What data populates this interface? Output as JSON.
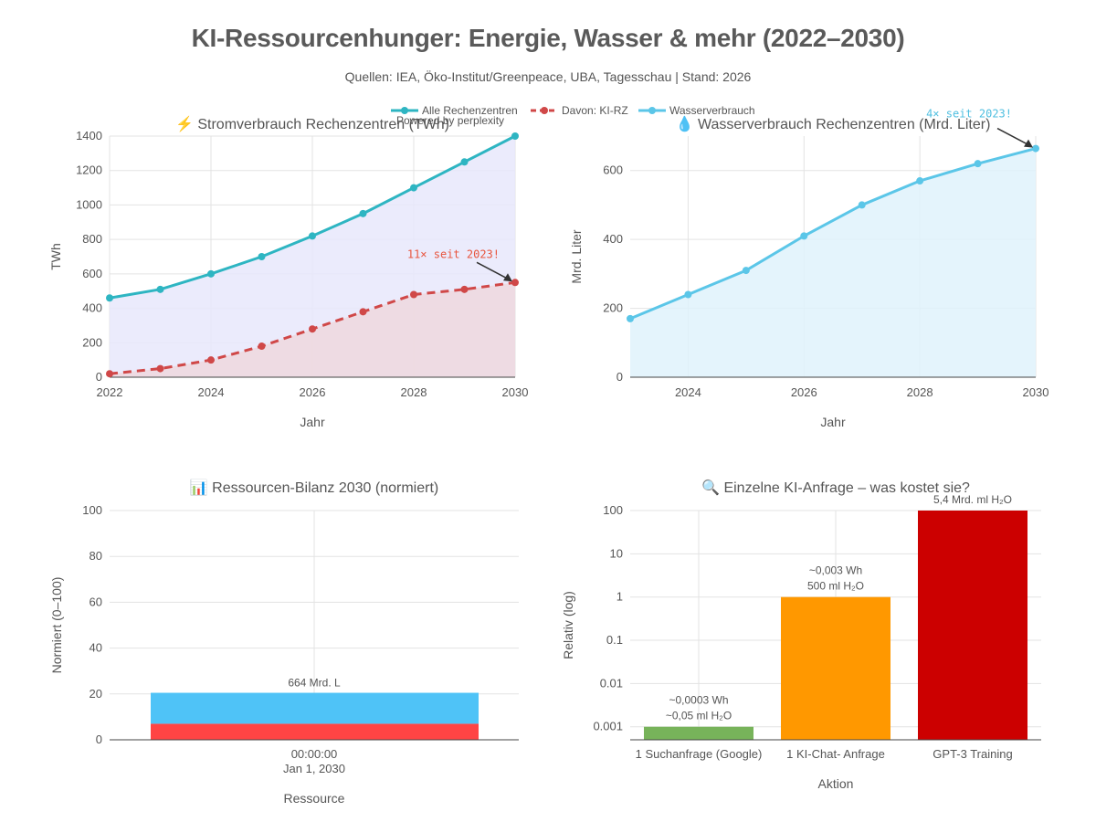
{
  "title": "KI-Ressourcenhunger: Energie, Wasser & mehr (2022–2030)",
  "subtitle": "Quellen: IEA, Öko-Institut/Greenpeace, UBA, Tagesschau | Stand: 2026",
  "brand": "Powered by  perplexity",
  "legend": [
    {
      "name": "Alle Rechenzentren",
      "color": "#2eb5c2",
      "dash": false
    },
    {
      "name": "Davon: KI-RZ",
      "color": "#d04848",
      "dash": true
    },
    {
      "name": "Wasserverbrauch",
      "color": "#5bc6e8",
      "dash": false
    }
  ],
  "chart_data": [
    {
      "type": "line",
      "title": "⚡ Stromverbrauch Rechenzentren (TWh)",
      "xlabel": "Jahr",
      "ylabel": "TWh",
      "x": [
        2022,
        2023,
        2024,
        2025,
        2026,
        2027,
        2028,
        2029,
        2030
      ],
      "xlim": [
        2022,
        2030
      ],
      "xticks": [
        2022,
        2024,
        2026,
        2028,
        2030
      ],
      "ylim": [
        0,
        1400
      ],
      "yticks": [
        0,
        200,
        400,
        600,
        800,
        1000,
        1200,
        1400
      ],
      "series": [
        {
          "name": "Alle Rechenzentren",
          "values": [
            460,
            510,
            600,
            700,
            820,
            950,
            1100,
            1250,
            1400
          ],
          "color": "#2eb5c2",
          "fill": "#e8e8fb",
          "dash": false
        },
        {
          "name": "Davon: KI-RZ",
          "values": [
            20,
            50,
            100,
            180,
            280,
            380,
            480,
            510,
            550
          ],
          "color": "#d04848",
          "fill": "#efd8de",
          "dash": true
        }
      ],
      "annotation": {
        "text": "11× seit 2023!",
        "x": 2030,
        "y": 550,
        "color": "#e8553e"
      }
    },
    {
      "type": "area",
      "title": "💧 Wasserverbrauch Rechenzentren (Mrd. Liter)",
      "xlabel": "Jahr",
      "ylabel": "Mrd. Liter",
      "x": [
        2023,
        2024,
        2025,
        2026,
        2027,
        2028,
        2029,
        2030
      ],
      "xlim": [
        2023,
        2030
      ],
      "xticks": [
        2024,
        2026,
        2028,
        2030
      ],
      "ylim": [
        0,
        700
      ],
      "yticks": [
        0,
        200,
        400,
        600
      ],
      "series": [
        {
          "name": "Wasserverbrauch",
          "values": [
            170,
            240,
            310,
            410,
            500,
            570,
            620,
            664
          ],
          "color": "#5bc6e8",
          "fill": "#dff2fb",
          "dash": false
        }
      ],
      "annotation": {
        "text": "4× seit 2023!",
        "x": 2030,
        "y": 664,
        "color": "#4fbfe0"
      }
    },
    {
      "type": "bar",
      "title": "📊 Ressourcen-Bilanz 2030 (normiert)",
      "xlabel": "Ressource",
      "ylabel": "Normiert (0–100)",
      "categories": [
        "00:00:00",
        "Jan 1, 2030"
      ],
      "ylim": [
        0,
        100
      ],
      "yticks": [
        0,
        20,
        40,
        60,
        80,
        100
      ],
      "stack": [
        {
          "value": 7,
          "color": "#ff4444"
        },
        {
          "value": 13.5,
          "color": "#4fc3f7"
        }
      ],
      "bar_label": "664 Mrd. L"
    },
    {
      "type": "bar",
      "title": "🔍 Einzelne KI-Anfrage – was kostet sie?",
      "xlabel": "Aktion",
      "ylabel": "Relativ (log)",
      "scale": "log",
      "yticks": [
        0.001,
        0.01,
        0.1,
        1,
        10,
        100
      ],
      "ytick_labels": [
        "0.001",
        "0.01",
        "0.1",
        "1",
        "10",
        "100"
      ],
      "categories": [
        "1 Suchanfrage (Google)",
        "1 KI-Chat- Anfrage",
        "GPT-3 Training"
      ],
      "values": [
        0.001,
        1,
        100
      ],
      "colors": [
        "#77b35a",
        "#ff9800",
        "#cc0000"
      ],
      "labels": [
        [
          "~0,0003 Wh",
          "~0,05 ml H₂O"
        ],
        [
          "~0,003 Wh",
          "500 ml H₂O"
        ],
        [
          "5,4 Mrd. ml H₂O"
        ]
      ]
    }
  ]
}
